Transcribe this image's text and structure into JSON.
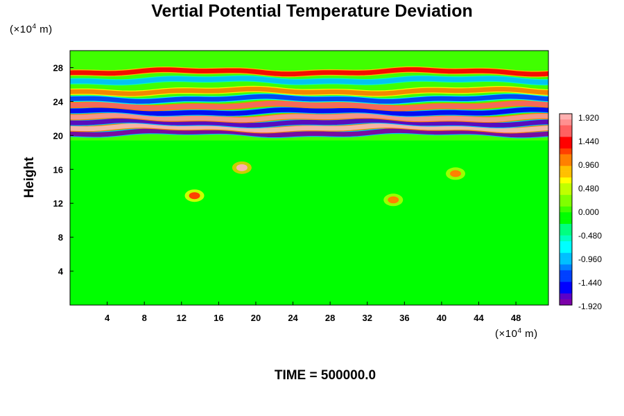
{
  "chart_data": {
    "type": "heatmap",
    "title": "Vertial Potential Temperature Deviation",
    "ylabel": "Height",
    "x_unit": {
      "prefix": "(×10",
      "exponent": "4",
      "suffix": " m)"
    },
    "y_unit": {
      "prefix": "(×10",
      "exponent": "4",
      "suffix": " m)"
    },
    "xlim": [
      0,
      51.5
    ],
    "ylim": [
      0,
      30
    ],
    "x_ticks": [
      4,
      8,
      12,
      16,
      20,
      24,
      28,
      32,
      36,
      40,
      44,
      48
    ],
    "y_ticks": [
      4,
      8,
      12,
      16,
      20,
      24,
      28
    ],
    "colorbar": {
      "labels": [
        "1.920",
        "1.440",
        "0.960",
        "0.480",
        "0.000",
        "-0.480",
        "-0.960",
        "-1.440",
        "-1.920"
      ],
      "min": -1.92,
      "max": 1.92,
      "levels": 33,
      "colors": [
        "#7b00a8",
        "#5a00c8",
        "#0000ff",
        "#0040ff",
        "#0080ff",
        "#00c0ff",
        "#00ffff",
        "#00ffc0",
        "#00ff80",
        "#00ff00",
        "#40ff00",
        "#80ff00",
        "#c0ff00",
        "#ffff00",
        "#ffc000",
        "#ff8000",
        "#ff4000",
        "#ff0000",
        "#ff6060",
        "#ff9090",
        "#ffb0b0"
      ]
    },
    "bands": [
      {
        "y": 20.3,
        "value": -1.9
      },
      {
        "y": 20.9,
        "value": 1.9
      },
      {
        "y": 21.5,
        "value": -1.7
      },
      {
        "y": 22.1,
        "value": 1.8
      },
      {
        "y": 22.8,
        "value": -1.6
      },
      {
        "y": 23.5,
        "value": 1.6
      },
      {
        "y": 24.3,
        "value": -1.3
      },
      {
        "y": 25.2,
        "value": 1.0
      },
      {
        "y": 26.5,
        "value": -0.9
      },
      {
        "y": 27.5,
        "value": 1.3
      }
    ],
    "features": [
      {
        "x": 18.5,
        "y": 16.2,
        "value": 1.9
      },
      {
        "x": 13.4,
        "y": 12.9,
        "value": 1.2
      },
      {
        "x": 34.8,
        "y": 12.4,
        "value": 1.0
      },
      {
        "x": 41.5,
        "y": 15.5,
        "value": 0.9
      }
    ]
  },
  "footer": {
    "label": "TIME = 500000.0"
  }
}
